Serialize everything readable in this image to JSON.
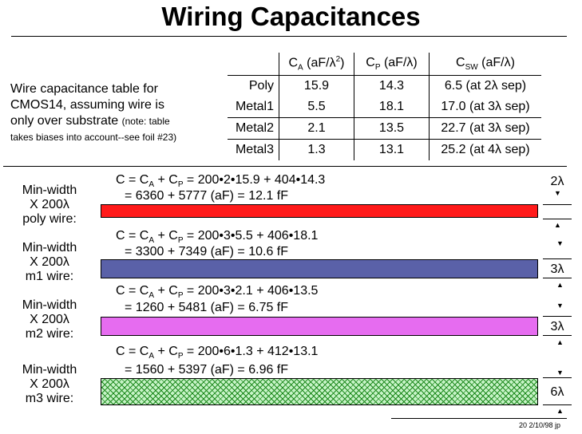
{
  "title": "Wiring Capacitances",
  "description": {
    "line1": "Wire capacitance table for",
    "line2": "CMOS14, assuming wire is",
    "line3_main": "only over substrate",
    "line3_note": "(note: table",
    "line4_note": "takes biases into account--see foil #23)"
  },
  "table": {
    "headers": [
      "Cₐ (aF/λ²)",
      "Cₚ (aF/λ)",
      "Cₛᵂ (aF/λ)"
    ],
    "header_parts": [
      {
        "base": "C",
        "sub": "A",
        "rest": " (aF/λ",
        "sup": "2",
        "end": ")"
      },
      {
        "base": "C",
        "sub": "P",
        "rest": " (aF/λ)",
        "sup": "",
        "end": ""
      },
      {
        "base": "C",
        "sub": "SW",
        "rest": " (aF/λ)",
        "sup": "",
        "end": ""
      }
    ],
    "rows": [
      {
        "layer": "Poly",
        "ca": "15.9",
        "cp": "14.3",
        "csw": "6.5 (at 2λ sep)"
      },
      {
        "layer": "Metal1",
        "ca": "5.5",
        "cp": "18.1",
        "csw": "17.0 (at 3λ sep)"
      },
      {
        "layer": "Metal2",
        "ca": "2.1",
        "cp": "13.5",
        "csw": "22.7 (at 3λ sep)"
      },
      {
        "layer": "Metal3",
        "ca": "1.3",
        "cp": "13.1",
        "csw": "25.2 (at 4λ sep)"
      }
    ]
  },
  "wires": [
    {
      "label": [
        "Min-width",
        "X 200λ",
        "poly wire:"
      ],
      "eq1_a": "C = C",
      "eq1_sub1": "A",
      "eq1_b": " + C",
      "eq1_sub2": "P",
      "eq1_c": " = 200•2•15.9 + 404•14.3",
      "eq2": "= 6360 + 5777 (aF) = 12.1 fF",
      "width_label": "2λ",
      "color": "#ff1a1a"
    },
    {
      "label": [
        "Min-width",
        "X 200λ",
        "m1 wire:"
      ],
      "eq1_a": "C = C",
      "eq1_sub1": "A",
      "eq1_b": " + C",
      "eq1_sub2": "P",
      "eq1_c": " = 200•3•5.5 + 406•18.1",
      "eq2": "= 3300 + 7349 (aF) = 10.6 fF",
      "width_label": "3λ",
      "color": "#5a61a8"
    },
    {
      "label": [
        "Min-width",
        "X 200λ",
        "m2 wire:"
      ],
      "eq1_a": "C = C",
      "eq1_sub1": "A",
      "eq1_b": " + C",
      "eq1_sub2": "P",
      "eq1_c": " = 200•3•2.1 + 406•13.5",
      "eq2": "= 1260 + 5481 (aF) = 6.75 fF",
      "width_label": "3λ",
      "color": "#e66cf0"
    },
    {
      "label": [
        "Min-width",
        "X 200λ",
        "m3 wire:"
      ],
      "eq1_a": "C = C",
      "eq1_sub1": "A",
      "eq1_b": " + C",
      "eq1_sub2": "P",
      "eq1_c": " = 200•6•1.3 + 412•13.1",
      "eq2": "= 1560 + 5397 (aF) = 6.96 fF",
      "width_label": "6λ",
      "color": "#1f8a1f"
    }
  ],
  "footer": "20  2/10/98  jp"
}
